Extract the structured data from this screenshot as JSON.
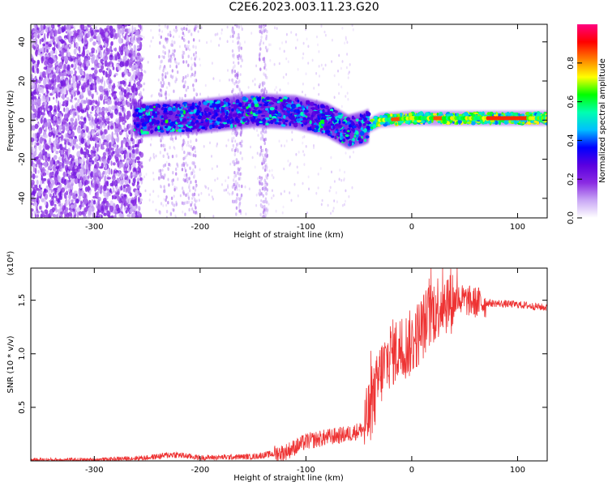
{
  "title": "C2E6.2023.003.11.23.G20",
  "chart_data": [
    {
      "type": "heatmap",
      "xlabel": "Height of straight line (km)",
      "ylabel": "Frequency (Hz)",
      "xlim": [
        -360,
        128
      ],
      "ylim": [
        -50,
        49
      ],
      "xticks": [
        -300,
        -200,
        -100,
        0,
        100
      ],
      "yticks": [
        -40,
        -20,
        0,
        20,
        40
      ],
      "colorbar": {
        "label": "Normalized spectral amplitude",
        "range": [
          0,
          1
        ],
        "ticks": [
          "0.0",
          "0.2",
          "0.4",
          "0.6",
          "0.8"
        ],
        "stops": [
          "#ffffff",
          "#c9a7f5",
          "#8a2be2",
          "#5a00e0",
          "#0000ff",
          "#00bfff",
          "#00ffb0",
          "#00ff00",
          "#ffff00",
          "#ff8000",
          "#ff0000",
          "#ff0080"
        ]
      },
      "ridge": {
        "description_points": [
          {
            "x": -260,
            "y": 0
          },
          {
            "x": -200,
            "y": 2
          },
          {
            "x": -150,
            "y": 5
          },
          {
            "x": -110,
            "y": 4
          },
          {
            "x": -80,
            "y": 0
          },
          {
            "x": -60,
            "y": -6
          },
          {
            "x": -45,
            "y": -4
          },
          {
            "x": -30,
            "y": 0
          },
          {
            "x": 0,
            "y": 1
          },
          {
            "x": 50,
            "y": 1
          },
          {
            "x": 100,
            "y": 1
          },
          {
            "x": 128,
            "y": 1
          }
        ]
      }
    },
    {
      "type": "line",
      "xlabel": "Height of straight line (km)",
      "ylabel": "SNR (10 * v/v)",
      "scale_label": "(x10⁴)",
      "xlim": [
        -360,
        128
      ],
      "ylim": [
        0,
        1.8
      ],
      "xticks": [
        -300,
        -200,
        -100,
        0,
        100
      ],
      "yticks": [
        "0.5",
        "1.0",
        "1.5"
      ],
      "series": [
        {
          "color": "#ee3333",
          "points": [
            [
              -360,
              0.01
            ],
            [
              -300,
              0.01
            ],
            [
              -250,
              0.03
            ],
            [
              -225,
              0.06
            ],
            [
              -200,
              0.03
            ],
            [
              -150,
              0.04
            ],
            [
              -120,
              0.08
            ],
            [
              -100,
              0.18
            ],
            [
              -80,
              0.22
            ],
            [
              -60,
              0.25
            ],
            [
              -45,
              0.3
            ],
            [
              -35,
              0.6
            ],
            [
              -30,
              0.8
            ],
            [
              -20,
              1.0
            ],
            [
              -10,
              1.05
            ],
            [
              0,
              1.1
            ],
            [
              10,
              1.25
            ],
            [
              20,
              1.4
            ],
            [
              30,
              1.5
            ],
            [
              40,
              1.5
            ],
            [
              50,
              1.5
            ],
            [
              60,
              1.48
            ],
            [
              80,
              1.47
            ],
            [
              100,
              1.46
            ],
            [
              128,
              1.43
            ]
          ]
        }
      ]
    }
  ]
}
